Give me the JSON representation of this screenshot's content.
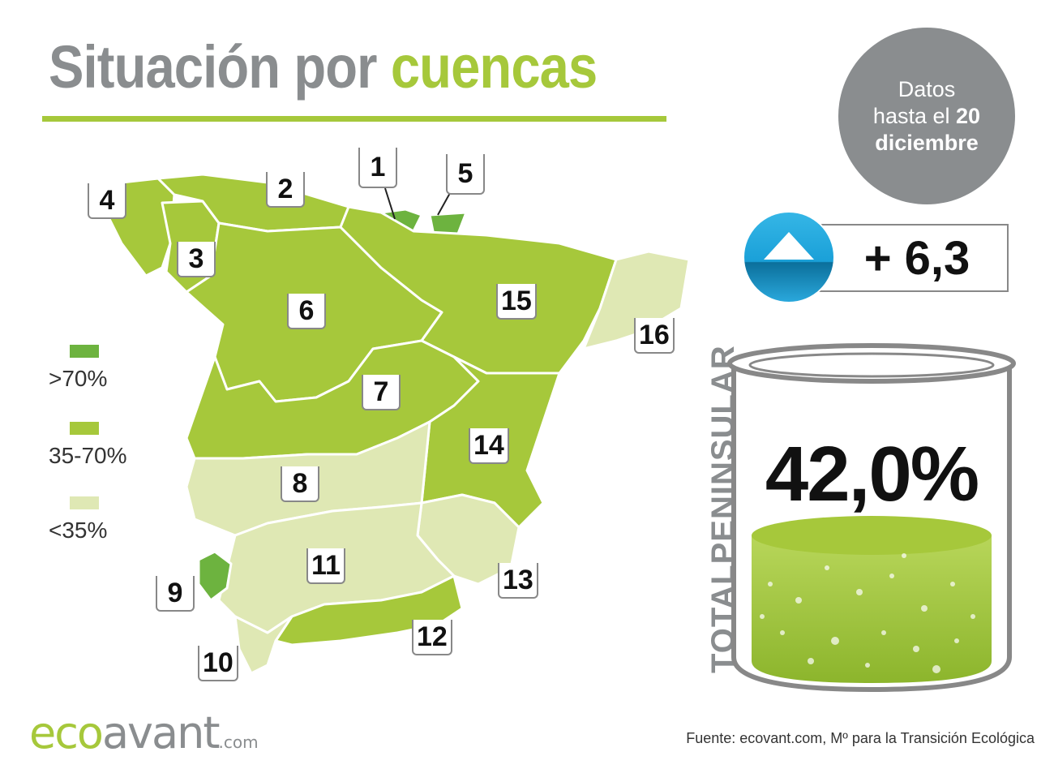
{
  "header": {
    "title_part1": "Situación por",
    "title_part2": "cuencas"
  },
  "date_badge": {
    "line1": "Datos",
    "line2_prefix": "hasta el",
    "day": "20",
    "month": "diciembre"
  },
  "legend": [
    {
      "label": ">70%",
      "color": "#6db33f"
    },
    {
      "label": "35-70%",
      "color": "#a6c83b"
    },
    {
      "label": "<35%",
      "color": "#dfe8b4"
    }
  ],
  "basins": [
    {
      "number": "1",
      "level": ">70%"
    },
    {
      "number": "2",
      "level": "35-70%"
    },
    {
      "number": "3",
      "level": "35-70%"
    },
    {
      "number": "4",
      "level": "35-70%"
    },
    {
      "number": "5",
      "level": ">70%"
    },
    {
      "number": "6",
      "level": "35-70%"
    },
    {
      "number": "7",
      "level": "35-70%"
    },
    {
      "number": "8",
      "level": "<35%"
    },
    {
      "number": "9",
      "level": ">70%"
    },
    {
      "number": "10",
      "level": "<35%"
    },
    {
      "number": "11",
      "level": "<35%"
    },
    {
      "number": "12",
      "level": "35-70%"
    },
    {
      "number": "13",
      "level": "<35%"
    },
    {
      "number": "14",
      "level": "35-70%"
    },
    {
      "number": "15",
      "level": "35-70%"
    },
    {
      "number": "16",
      "level": "<35%"
    }
  ],
  "change": {
    "value": "+ 6,3",
    "icon": "up-arrow-icon"
  },
  "total": {
    "label": "TOTALPENINSULAR",
    "value": "42,0%",
    "fill_fraction": 0.42
  },
  "logo": {
    "eco": "eco",
    "avant": "avant",
    "domain": ".com"
  },
  "source": "Fuente: ecovant.com, Mº para la Transición Ecológica",
  "colors": {
    "accent_green": "#a6c83b",
    "high_green": "#6db33f",
    "low_green": "#dfe8b4",
    "gray": "#8a8d8f"
  }
}
